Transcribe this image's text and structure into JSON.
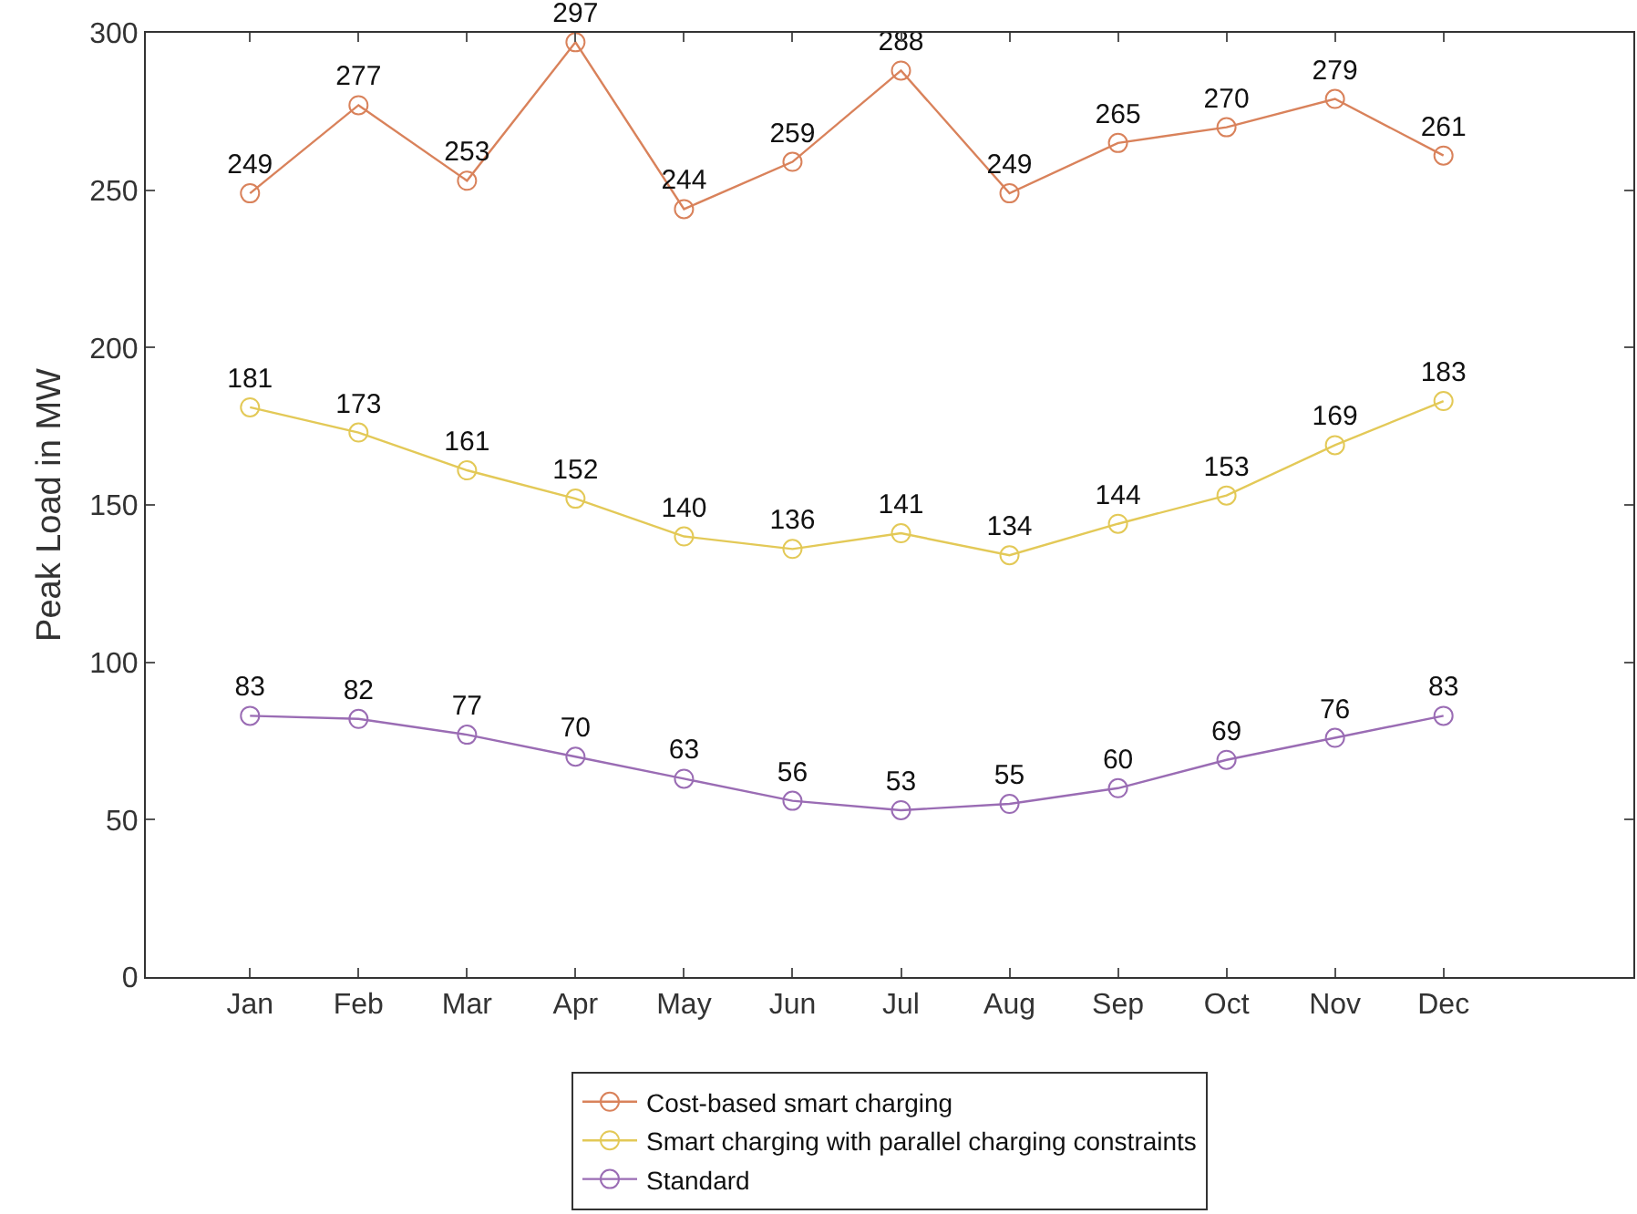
{
  "chart_data": {
    "type": "line",
    "ylabel": "Peak Load in MW",
    "categories": [
      "Jan",
      "Feb",
      "Mar",
      "Apr",
      "May",
      "Jun",
      "Jul",
      "Aug",
      "Sep",
      "Oct",
      "Nov",
      "Dec"
    ],
    "series": [
      {
        "name": "Cost-based smart charging",
        "color": "#d9825b",
        "values": [
          249,
          277,
          253,
          297,
          244,
          259,
          288,
          249,
          265,
          270,
          279,
          261
        ]
      },
      {
        "name": "Smart charging with parallel charging constraints",
        "color": "#e3c957",
        "values": [
          181,
          173,
          161,
          152,
          140,
          136,
          141,
          134,
          144,
          153,
          169,
          183
        ]
      },
      {
        "name": "Standard",
        "color": "#9a6cb4",
        "values": [
          83,
          82,
          77,
          70,
          63,
          56,
          53,
          55,
          60,
          69,
          76,
          83
        ]
      }
    ],
    "ylim": [
      0,
      300
    ],
    "yticks": [
      0,
      50,
      100,
      150,
      200,
      250,
      300
    ],
    "grid": false,
    "legend": "bottom",
    "marker": "circle",
    "line_style": "solid",
    "data_labels": true
  }
}
